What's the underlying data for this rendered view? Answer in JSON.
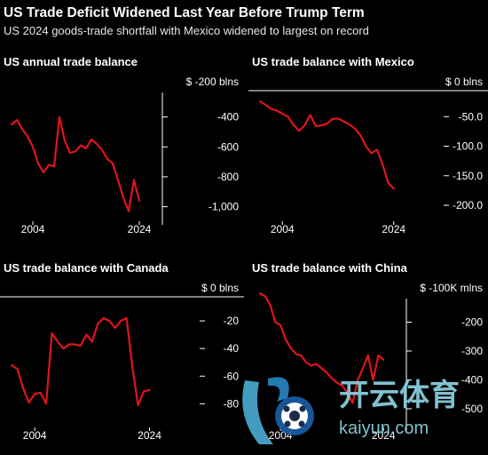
{
  "header": {
    "title": "US Trade Deficit Widened Last Year Before Trump Term",
    "subtitle": "US 2024 goods-trade shortfall with Mexico widened to largest on record"
  },
  "colors": {
    "background": "#000000",
    "line": "#e0141b",
    "text": "#ffffff"
  },
  "watermark": {
    "text_cn": "开云体育",
    "text_en": "kaiyun.com"
  },
  "chart_data": [
    {
      "type": "line",
      "title": "US annual trade balance",
      "x": [
        2000,
        2001,
        2002,
        2003,
        2004,
        2005,
        2006,
        2007,
        2008,
        2009,
        2010,
        2011,
        2012,
        2013,
        2014,
        2015,
        2016,
        2017,
        2018,
        2019,
        2020,
        2021,
        2022,
        2023,
        2024
      ],
      "series": [
        {
          "values": [
            -450,
            -420,
            -480,
            -530,
            -600,
            -710,
            -770,
            -720,
            -730,
            -400,
            -560,
            -640,
            -630,
            -590,
            -610,
            -550,
            -580,
            -620,
            -680,
            -710,
            -820,
            -940,
            -1030,
            -820,
            -960
          ]
        }
      ],
      "ylim": [
        -1050,
        -200
      ],
      "yticks": [
        -200,
        -400,
        -600,
        -800,
        -1000
      ],
      "ytick_labels": [
        "$ -200 blns",
        "-400",
        "-600",
        "-800",
        "-1,000"
      ],
      "xticks": [
        2004,
        2024
      ],
      "xtick_labels": [
        "2004",
        "2024"
      ],
      "xlim": [
        1999.5,
        2025
      ]
    },
    {
      "type": "line",
      "title": "US trade balance with Mexico",
      "x": [
        2000,
        2001,
        2002,
        2003,
        2004,
        2005,
        2006,
        2007,
        2008,
        2009,
        2010,
        2011,
        2012,
        2013,
        2014,
        2015,
        2016,
        2017,
        2018,
        2019,
        2020,
        2021,
        2022,
        2023,
        2024
      ],
      "series": [
        {
          "values": [
            -24,
            -30,
            -37,
            -40,
            -45,
            -50,
            -64,
            -74,
            -65,
            -47,
            -66,
            -65,
            -62,
            -54,
            -53,
            -58,
            -63,
            -70,
            -81,
            -100,
            -112,
            -106,
            -131,
            -162,
            -172
          ]
        }
      ],
      "ylim": [
        -215,
        0
      ],
      "yticks": [
        0,
        -50,
        -100,
        -150,
        -200
      ],
      "ytick_labels": [
        "$ 0 blns",
        "-50.0",
        "-100.0",
        "-150.0",
        "-200.0"
      ],
      "xticks": [
        2004,
        2024
      ],
      "xtick_labels": [
        "2004",
        "2024"
      ],
      "xlim": [
        1999.5,
        2025
      ]
    },
    {
      "type": "line",
      "title": "US trade balance with Canada",
      "x": [
        2000,
        2001,
        2002,
        2003,
        2004,
        2005,
        2006,
        2007,
        2008,
        2009,
        2010,
        2011,
        2012,
        2013,
        2014,
        2015,
        2016,
        2017,
        2018,
        2019,
        2020,
        2021,
        2022,
        2023,
        2024
      ],
      "series": [
        {
          "values": [
            -52,
            -55,
            -69,
            -79,
            -73,
            -72,
            -80,
            -29,
            -35,
            -40,
            -37,
            -37,
            -38,
            -30,
            -35,
            -22,
            -18,
            -20,
            -25,
            -20,
            -18,
            -53,
            -81,
            -71,
            -70
          ]
        }
      ],
      "ylim": [
        -92,
        0
      ],
      "yticks": [
        0,
        -20,
        -40,
        -60,
        -80
      ],
      "ytick_labels": [
        "$ 0 blns",
        "-20",
        "-40",
        "-60",
        "-80"
      ],
      "xticks": [
        2004,
        2024
      ],
      "xtick_labels": [
        "2004",
        "2024"
      ],
      "xlim": [
        1999.5,
        2025
      ]
    },
    {
      "type": "line",
      "title": "US trade balance with China",
      "x": [
        2000,
        2001,
        2002,
        2003,
        2004,
        2005,
        2006,
        2007,
        2008,
        2009,
        2010,
        2011,
        2012,
        2013,
        2014,
        2015,
        2016,
        2017,
        2018,
        2019,
        2020,
        2021,
        2022,
        2023,
        2024
      ],
      "series": [
        {
          "values": [
            -100,
            -110,
            -140,
            -200,
            -210,
            -260,
            -290,
            -310,
            -315,
            -340,
            -350,
            -345,
            -360,
            -375,
            -395,
            -410,
            -420,
            -445,
            -480,
            -400,
            -360,
            -315,
            -400,
            -315,
            -330
          ]
        }
      ],
      "ylim": [
        -540,
        -100
      ],
      "yticks": [
        -100,
        -200,
        -300,
        -400,
        -500
      ],
      "ytick_labels": [
        "$ -100K mlns",
        "-200",
        "-300",
        "-400",
        "-500"
      ],
      "xticks": [
        2004,
        2024
      ],
      "xtick_labels": [
        "2004",
        "2024"
      ],
      "xlim": [
        1999.5,
        2025
      ]
    }
  ]
}
